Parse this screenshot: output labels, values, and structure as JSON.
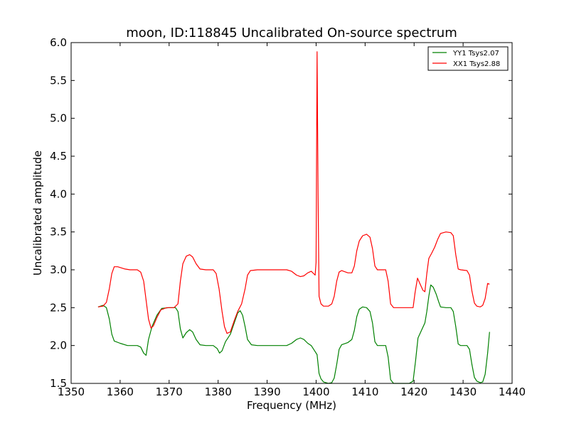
{
  "chart_data": {
    "type": "line",
    "title": "moon, ID:118845 Uncalibrated On-source spectrum",
    "xlabel": "Frequency (MHz)",
    "ylabel": "Uncalibrated amplitude",
    "xlim": [
      1350,
      1440
    ],
    "ylim": [
      1.5,
      6.0
    ],
    "xticks": [
      "1350",
      "1360",
      "1370",
      "1380",
      "1390",
      "1400",
      "1410",
      "1420",
      "1430",
      "1440"
    ],
    "yticks": [
      "1.5",
      "2.0",
      "2.5",
      "3.0",
      "3.5",
      "4.0",
      "4.5",
      "5.0",
      "5.5",
      "6.0"
    ],
    "grid": false,
    "legend_position": "top-right",
    "series": [
      {
        "name": "YY1 Tsys2.07",
        "color": "#008000",
        "points": [
          [
            1355.5,
            2.51
          ],
          [
            1356.5,
            2.53
          ],
          [
            1357.2,
            2.5
          ],
          [
            1357.8,
            2.35
          ],
          [
            1358.3,
            2.15
          ],
          [
            1358.8,
            2.06
          ],
          [
            1360.0,
            2.03
          ],
          [
            1361.5,
            2.0
          ],
          [
            1363.5,
            2.0
          ],
          [
            1364.2,
            1.98
          ],
          [
            1364.8,
            1.9
          ],
          [
            1365.3,
            1.87
          ],
          [
            1365.8,
            2.08
          ],
          [
            1366.5,
            2.25
          ],
          [
            1367.5,
            2.4
          ],
          [
            1368.5,
            2.49
          ],
          [
            1370.0,
            2.5
          ],
          [
            1371.3,
            2.5
          ],
          [
            1371.8,
            2.45
          ],
          [
            1372.3,
            2.22
          ],
          [
            1372.8,
            2.1
          ],
          [
            1373.5,
            2.17
          ],
          [
            1374.2,
            2.21
          ],
          [
            1374.8,
            2.18
          ],
          [
            1375.5,
            2.08
          ],
          [
            1376.3,
            2.01
          ],
          [
            1377.5,
            2.0
          ],
          [
            1379.0,
            2.0
          ],
          [
            1379.8,
            1.96
          ],
          [
            1380.3,
            1.9
          ],
          [
            1380.8,
            1.93
          ],
          [
            1381.5,
            2.05
          ],
          [
            1382.5,
            2.15
          ],
          [
            1383.3,
            2.3
          ],
          [
            1384.0,
            2.43
          ],
          [
            1384.5,
            2.46
          ],
          [
            1385.0,
            2.4
          ],
          [
            1385.5,
            2.25
          ],
          [
            1386.0,
            2.08
          ],
          [
            1386.8,
            2.01
          ],
          [
            1388.0,
            2.0
          ],
          [
            1390.0,
            2.0
          ],
          [
            1392.0,
            2.0
          ],
          [
            1394.0,
            2.0
          ],
          [
            1395.0,
            2.03
          ],
          [
            1396.0,
            2.08
          ],
          [
            1396.8,
            2.1
          ],
          [
            1397.5,
            2.08
          ],
          [
            1398.3,
            2.03
          ],
          [
            1399.0,
            2.0
          ],
          [
            1399.6,
            1.94
          ],
          [
            1400.2,
            1.88
          ],
          [
            1400.6,
            1.63
          ],
          [
            1401.0,
            1.56
          ],
          [
            1401.5,
            1.52
          ],
          [
            1402.5,
            1.5
          ],
          [
            1403.2,
            1.51
          ],
          [
            1403.7,
            1.57
          ],
          [
            1404.2,
            1.75
          ],
          [
            1404.7,
            1.95
          ],
          [
            1405.2,
            2.01
          ],
          [
            1406.5,
            2.04
          ],
          [
            1407.3,
            2.08
          ],
          [
            1407.8,
            2.2
          ],
          [
            1408.3,
            2.38
          ],
          [
            1408.8,
            2.48
          ],
          [
            1409.5,
            2.51
          ],
          [
            1410.3,
            2.5
          ],
          [
            1411.0,
            2.45
          ],
          [
            1411.5,
            2.3
          ],
          [
            1412.0,
            2.05
          ],
          [
            1412.5,
            2.0
          ],
          [
            1414.2,
            2.0
          ],
          [
            1414.7,
            1.85
          ],
          [
            1415.2,
            1.55
          ],
          [
            1415.8,
            1.5
          ],
          [
            1417.5,
            1.5
          ],
          [
            1419.0,
            1.5
          ],
          [
            1419.8,
            1.53
          ],
          [
            1420.3,
            1.8
          ],
          [
            1420.8,
            2.1
          ],
          [
            1421.5,
            2.2
          ],
          [
            1422.2,
            2.3
          ],
          [
            1422.6,
            2.45
          ],
          [
            1423.0,
            2.65
          ],
          [
            1423.4,
            2.8
          ],
          [
            1423.9,
            2.77
          ],
          [
            1424.5,
            2.68
          ],
          [
            1425.0,
            2.58
          ],
          [
            1425.4,
            2.51
          ],
          [
            1426.5,
            2.5
          ],
          [
            1427.5,
            2.5
          ],
          [
            1428.0,
            2.45
          ],
          [
            1428.5,
            2.25
          ],
          [
            1429.0,
            2.02
          ],
          [
            1429.5,
            2.0
          ],
          [
            1430.8,
            2.0
          ],
          [
            1431.3,
            1.95
          ],
          [
            1431.8,
            1.75
          ],
          [
            1432.3,
            1.58
          ],
          [
            1432.8,
            1.53
          ],
          [
            1433.5,
            1.51
          ],
          [
            1434.0,
            1.52
          ],
          [
            1434.5,
            1.62
          ],
          [
            1435.0,
            1.9
          ],
          [
            1435.4,
            2.18
          ]
        ]
      },
      {
        "name": "XX1 Tsys2.88",
        "color": "#ff0000",
        "points": [
          [
            1355.5,
            2.51
          ],
          [
            1356.5,
            2.52
          ],
          [
            1357.2,
            2.57
          ],
          [
            1357.8,
            2.75
          ],
          [
            1358.3,
            2.95
          ],
          [
            1358.8,
            3.04
          ],
          [
            1359.5,
            3.04
          ],
          [
            1361.0,
            3.01
          ],
          [
            1362.0,
            3.0
          ],
          [
            1363.5,
            3.0
          ],
          [
            1364.2,
            2.97
          ],
          [
            1364.8,
            2.85
          ],
          [
            1365.3,
            2.6
          ],
          [
            1365.8,
            2.35
          ],
          [
            1366.3,
            2.23
          ],
          [
            1366.8,
            2.26
          ],
          [
            1367.5,
            2.37
          ],
          [
            1368.3,
            2.47
          ],
          [
            1369.5,
            2.5
          ],
          [
            1371.0,
            2.5
          ],
          [
            1371.8,
            2.55
          ],
          [
            1372.3,
            2.85
          ],
          [
            1372.8,
            3.08
          ],
          [
            1373.5,
            3.18
          ],
          [
            1374.2,
            3.2
          ],
          [
            1374.8,
            3.17
          ],
          [
            1375.5,
            3.08
          ],
          [
            1376.3,
            3.01
          ],
          [
            1377.5,
            3.0
          ],
          [
            1379.0,
            3.0
          ],
          [
            1379.6,
            2.95
          ],
          [
            1380.2,
            2.75
          ],
          [
            1380.8,
            2.45
          ],
          [
            1381.3,
            2.25
          ],
          [
            1381.8,
            2.16
          ],
          [
            1382.5,
            2.18
          ],
          [
            1383.3,
            2.33
          ],
          [
            1384.0,
            2.45
          ],
          [
            1384.8,
            2.55
          ],
          [
            1385.5,
            2.75
          ],
          [
            1386.0,
            2.93
          ],
          [
            1386.6,
            2.99
          ],
          [
            1388.0,
            3.0
          ],
          [
            1390.0,
            3.0
          ],
          [
            1392.0,
            3.0
          ],
          [
            1394.0,
            3.0
          ],
          [
            1395.0,
            2.98
          ],
          [
            1396.0,
            2.93
          ],
          [
            1396.8,
            2.91
          ],
          [
            1397.5,
            2.92
          ],
          [
            1398.3,
            2.96
          ],
          [
            1399.0,
            2.98
          ],
          [
            1399.8,
            2.93
          ],
          [
            1400.0,
            3.1
          ],
          [
            1400.2,
            5.88
          ],
          [
            1400.4,
            4.0
          ],
          [
            1400.6,
            2.65
          ],
          [
            1401.0,
            2.55
          ],
          [
            1401.5,
            2.52
          ],
          [
            1402.5,
            2.52
          ],
          [
            1403.2,
            2.55
          ],
          [
            1403.7,
            2.65
          ],
          [
            1404.2,
            2.85
          ],
          [
            1404.7,
            2.97
          ],
          [
            1405.2,
            2.99
          ],
          [
            1406.5,
            2.96
          ],
          [
            1407.3,
            2.96
          ],
          [
            1407.8,
            3.05
          ],
          [
            1408.3,
            3.25
          ],
          [
            1408.8,
            3.38
          ],
          [
            1409.5,
            3.45
          ],
          [
            1410.3,
            3.47
          ],
          [
            1411.0,
            3.43
          ],
          [
            1411.5,
            3.28
          ],
          [
            1412.0,
            3.05
          ],
          [
            1412.5,
            3.0
          ],
          [
            1414.2,
            3.0
          ],
          [
            1414.7,
            2.85
          ],
          [
            1415.2,
            2.55
          ],
          [
            1415.8,
            2.5
          ],
          [
            1417.5,
            2.5
          ],
          [
            1419.0,
            2.5
          ],
          [
            1419.8,
            2.5
          ],
          [
            1420.2,
            2.7
          ],
          [
            1420.7,
            2.89
          ],
          [
            1421.3,
            2.8
          ],
          [
            1421.8,
            2.73
          ],
          [
            1422.2,
            2.71
          ],
          [
            1422.6,
            2.95
          ],
          [
            1423.0,
            3.15
          ],
          [
            1423.6,
            3.22
          ],
          [
            1424.2,
            3.3
          ],
          [
            1424.8,
            3.4
          ],
          [
            1425.4,
            3.48
          ],
          [
            1426.5,
            3.5
          ],
          [
            1427.5,
            3.49
          ],
          [
            1428.0,
            3.45
          ],
          [
            1428.5,
            3.2
          ],
          [
            1429.0,
            3.01
          ],
          [
            1429.5,
            3.0
          ],
          [
            1430.8,
            2.99
          ],
          [
            1431.3,
            2.93
          ],
          [
            1431.8,
            2.72
          ],
          [
            1432.3,
            2.56
          ],
          [
            1432.8,
            2.52
          ],
          [
            1433.5,
            2.51
          ],
          [
            1434.0,
            2.53
          ],
          [
            1434.5,
            2.62
          ],
          [
            1435.0,
            2.82
          ],
          [
            1435.4,
            2.81
          ]
        ]
      }
    ]
  }
}
